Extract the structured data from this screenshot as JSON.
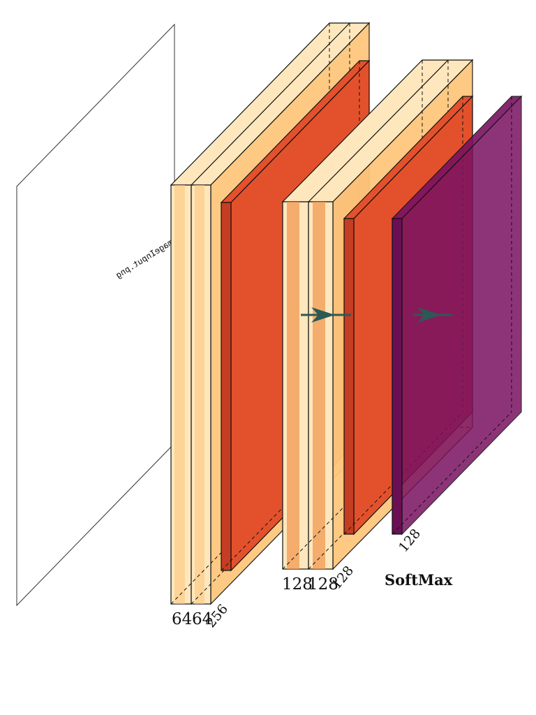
{
  "colors": {
    "conv_light": "#ffe7bd",
    "conv_mid": "#fdc77d",
    "conv_dark": "#f09a52",
    "conv_face": "#ef8f4a",
    "pool": "#e3512c",
    "pool_side": "#c53d22",
    "softmax": "#7a1161",
    "softmax_side": "#6a0f55",
    "arrow": "#2a5a56",
    "edge": "#111111"
  },
  "input": {
    "filename": "ImageInput.png"
  },
  "block1": {
    "channels": [
      "64",
      "64"
    ],
    "pool_channels": "256"
  },
  "block2": {
    "channels": [
      "128",
      "128"
    ],
    "pool_channels": "128"
  },
  "softmax": {
    "channels": "128",
    "label": "SoftMax"
  },
  "icons": {
    "arrow1": "arrow-right-icon",
    "arrow2": "arrow-right-icon"
  }
}
